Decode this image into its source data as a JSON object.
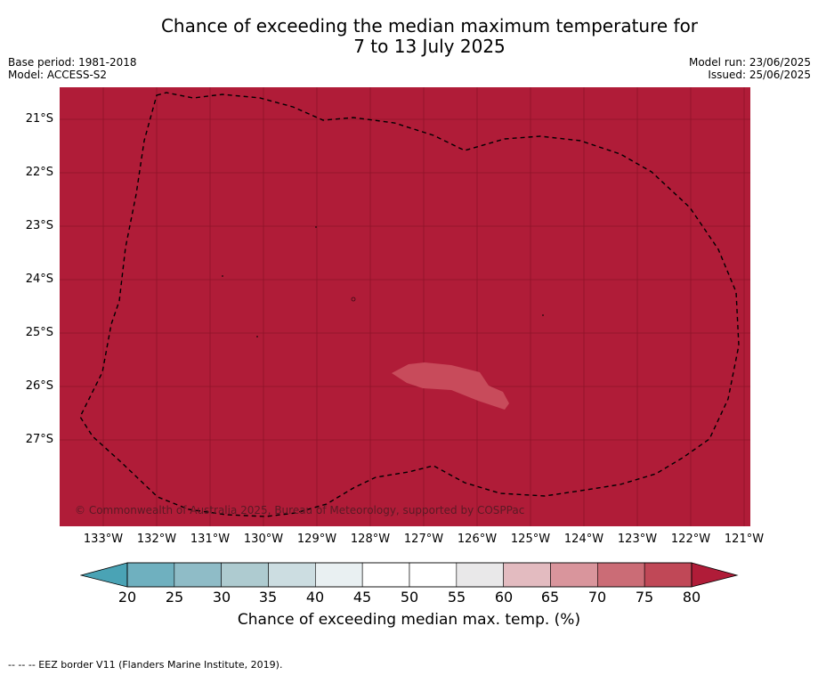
{
  "title_line1": "Chance of exceeding the median maximum temperature for",
  "title_line2": "7 to 13 July 2025",
  "base_period": "Base period: 1981-2018",
  "model": "Model: ACCESS-S2",
  "model_run": "Model run: 23/06/2025",
  "issued": "Issued: 25/06/2025",
  "lat_labels": [
    "21°S",
    "22°S",
    "23°S",
    "24°S",
    "25°S",
    "26°S",
    "27°S"
  ],
  "lon_labels": [
    "133°W",
    "132°W",
    "131°W",
    "130°W",
    "129°W",
    "128°W",
    "127°W",
    "126°W",
    "125°W",
    "124°W",
    "123°W",
    "122°W",
    "121°W"
  ],
  "copyright": "© Commonwealth of Australia 2025, Bureau of Meteorology, supported by COSPPac",
  "colorbar": {
    "ticks": [
      "20",
      "25",
      "30",
      "35",
      "40",
      "45",
      "50",
      "55",
      "60",
      "65",
      "70",
      "75",
      "80"
    ],
    "colors": [
      "#6fb0bf",
      "#8fbcc7",
      "#aecbd0",
      "#ccdde1",
      "#e9f0f2",
      "#ffffff",
      "#ffffff",
      "#e9e8e9",
      "#e3bbc0",
      "#d9959c",
      "#cb6c76",
      "#c04857"
    ],
    "under_color": "#4aa3b5",
    "over_color": "#b01c38",
    "title": "Chance of exceeding median max. temp. (%)"
  },
  "map_colors": {
    "background": "#b01c38",
    "patch": "#c84b5b"
  },
  "footer": "-- -- -- EEZ border V11 (Flanders Marine Institute, 2019)."
}
